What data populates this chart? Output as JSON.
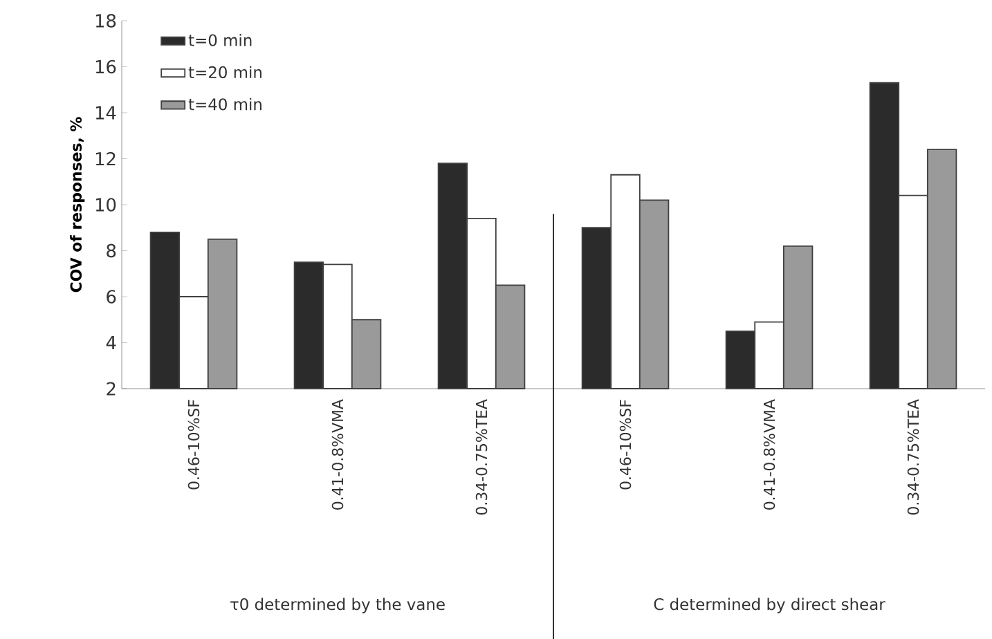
{
  "chart_data": {
    "type": "bar",
    "ylabel": "COV of responses, %",
    "categories": [
      "0.46-10%SF",
      "0.41-0.8%VMA",
      "0.34-0.75%TEA",
      "0.46-10%SF",
      "0.41-0.8%VMA",
      "0.34-0.75%TEA"
    ],
    "series": [
      {
        "name": "t=0 min",
        "color": "#2b2b2b",
        "values": [
          8.8,
          7.5,
          11.8,
          9.0,
          4.5,
          15.3
        ]
      },
      {
        "name": "t=20 min",
        "color": "#ffffff",
        "values": [
          6.0,
          7.4,
          9.4,
          11.3,
          4.9,
          10.4
        ]
      },
      {
        "name": "t=40 min",
        "color": "#9a9a9a",
        "values": [
          8.5,
          5.0,
          6.5,
          10.2,
          8.2,
          12.4
        ]
      }
    ],
    "ylim": [
      2,
      18
    ],
    "yticks": [
      2,
      4,
      6,
      8,
      10,
      12,
      14,
      16,
      18
    ],
    "annotations": [
      "τ0 determined by the vane",
      "C determined by direct shear"
    ],
    "legend": "top left",
    "grid": false
  }
}
